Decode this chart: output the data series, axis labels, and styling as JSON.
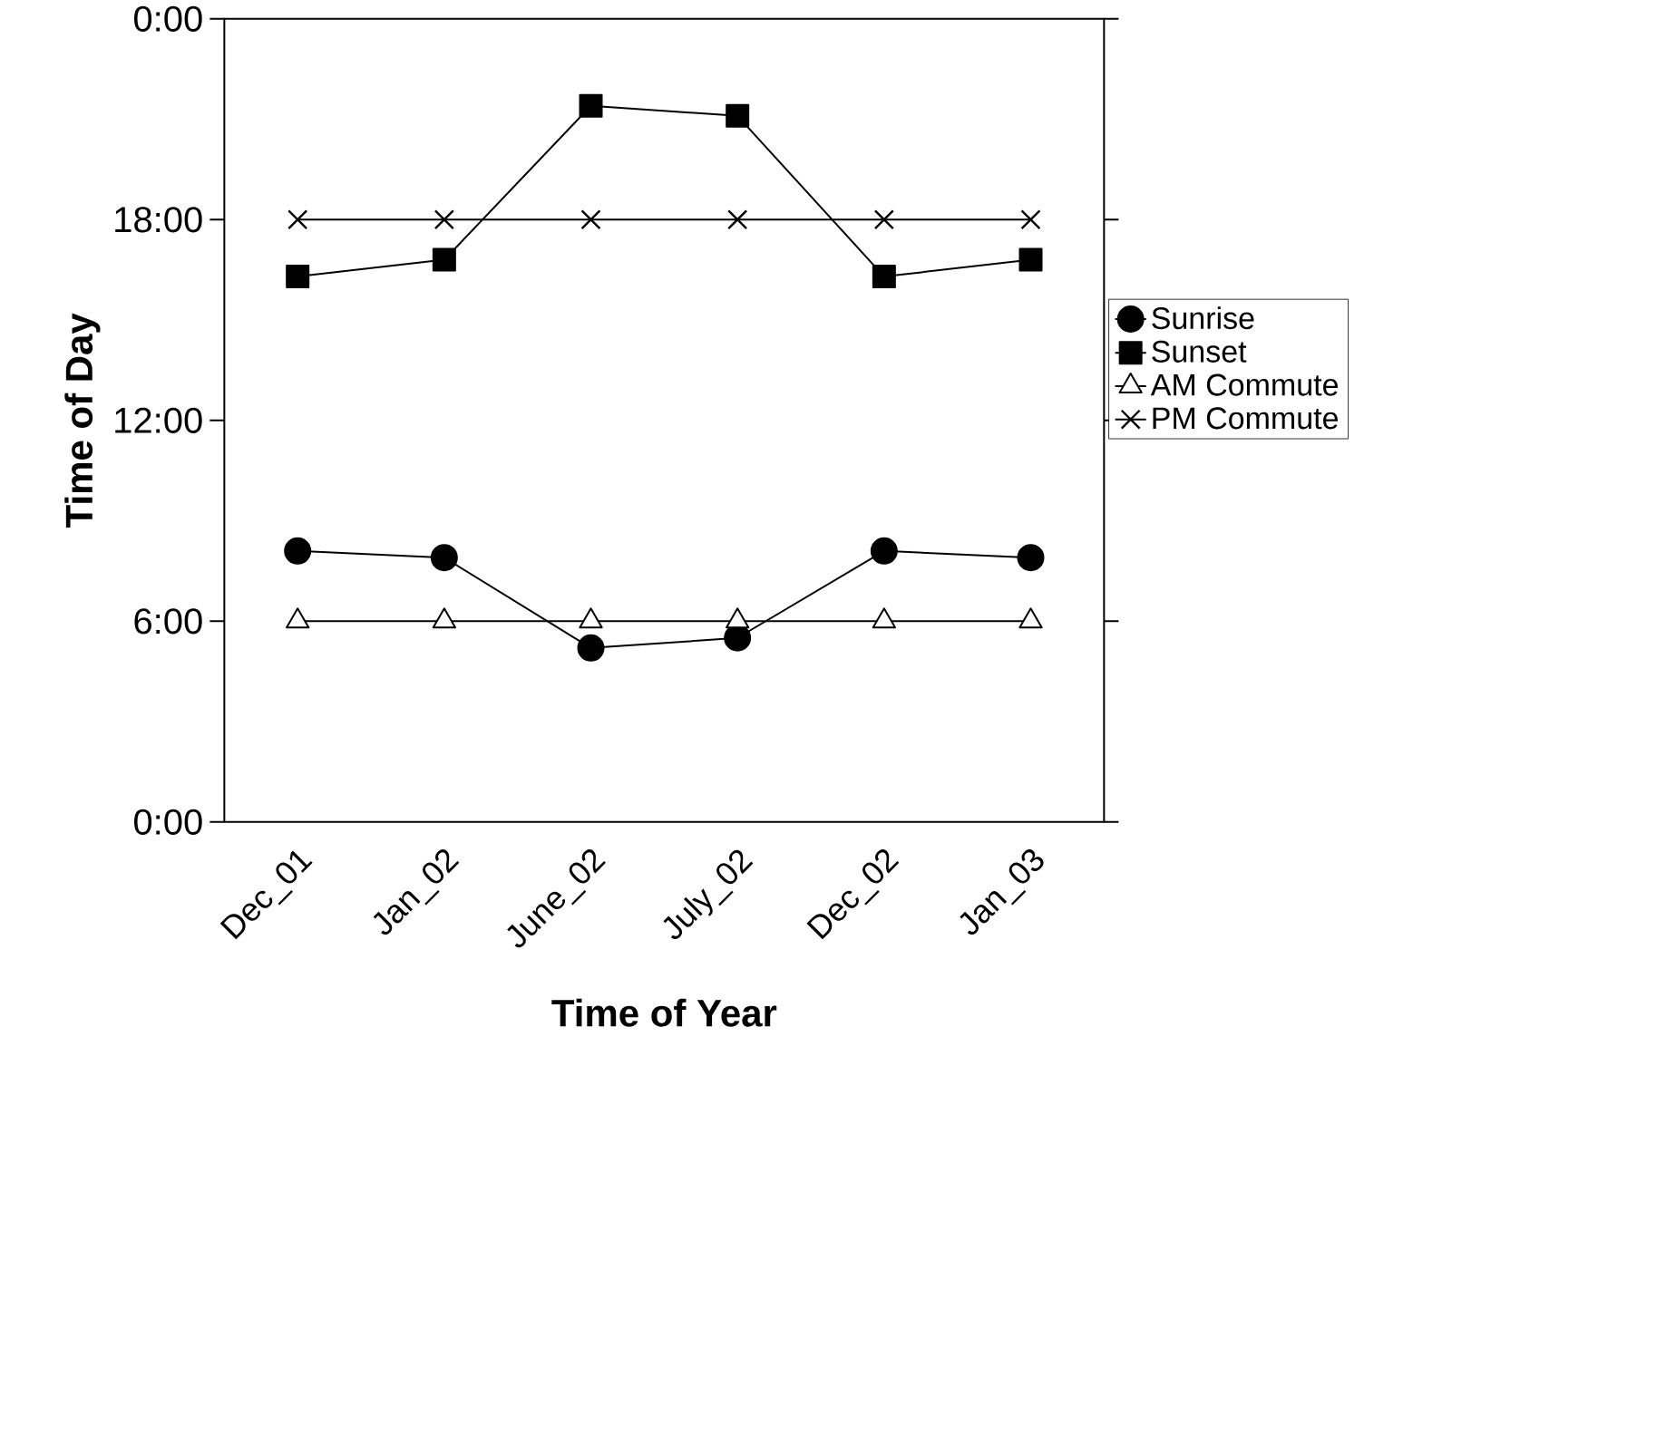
{
  "chart_data": {
    "type": "line",
    "xlabel": "Time of Year",
    "ylabel": "Time of Day",
    "categories": [
      "Dec_01",
      "Jan_02",
      "June_02",
      "July_02",
      "Dec_02",
      "Jan_03"
    ],
    "ylim": [
      0,
      24
    ],
    "yticks": [
      {
        "value": 0,
        "label": "0:00"
      },
      {
        "value": 6,
        "label": "6:00"
      },
      {
        "value": 12,
        "label": "12:00"
      },
      {
        "value": 18,
        "label": "18:00"
      },
      {
        "value": 24,
        "label": "0:00"
      }
    ],
    "grid": false,
    "legend": "right",
    "line_style": "solid",
    "series": [
      {
        "name": "Sunrise",
        "color": "#000000",
        "marker": "circle",
        "values": [
          8.1,
          7.9,
          5.2,
          5.5,
          8.1,
          7.9
        ]
      },
      {
        "name": "Sunset",
        "color": "#000000",
        "marker": "square",
        "values": [
          16.3,
          16.8,
          21.4,
          21.1,
          16.3,
          16.8
        ]
      },
      {
        "name": "AM Commute",
        "color": "#000000",
        "marker": "triangle",
        "values": [
          6,
          6,
          6,
          6,
          6,
          6
        ]
      },
      {
        "name": "PM Commute",
        "color": "#000000",
        "marker": "cross",
        "values": [
          18,
          18,
          18,
          18,
          18,
          18
        ]
      }
    ]
  }
}
